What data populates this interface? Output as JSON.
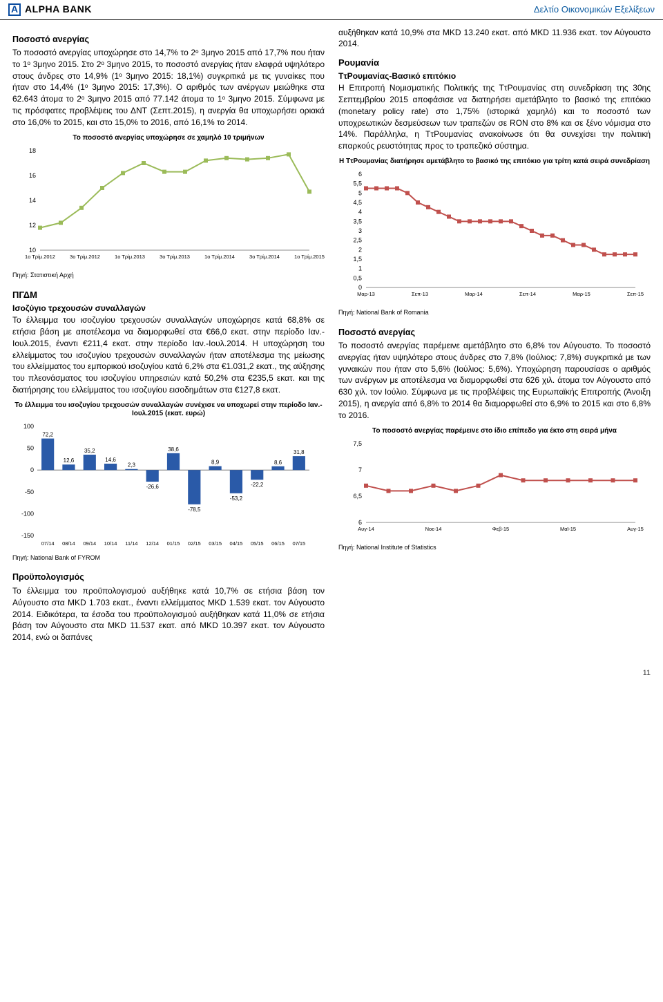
{
  "header": {
    "bank_name": "ALPHA BANK",
    "right_text": "Δελτίο Οικονομικών Εξελίξεων"
  },
  "left": {
    "sec1_title": "Ποσοστό ανεργίας",
    "sec1_body": "Το ποσοστό ανεργίας υποχώρησε στο 14,7% το 2ᵒ 3μηνο 2015 από 17,7% που ήταν το 1ᵒ 3μηνο 2015. Στο 2ᵒ 3μηνο 2015, το ποσοστό ανεργίας ήταν ελαφρά υψηλότερο στους άνδρες στο 14,9% (1ᵒ 3μηνο 2015: 18,1%) συγκριτικά με τις γυναίκες που ήταν στο 14,4% (1ᵒ 3μηνο 2015: 17,3%). Ο αριθμός των ανέργων μειώθηκε στα 62.643 άτομα το 2ᵒ 3μηνο 2015 από 77.142 άτομα το 1ᵒ 3μηνο 2015. Σύμφωνα με τις πρόσφατες προβλέψεις του ΔΝΤ (Σεπτ.2015), η ανεργία θα υποχωρήσει οριακά στο 16,0% το 2015, και στο 15,0% το 2016, από 16,1% το 2014.",
    "chart1": {
      "title": "Το ποσοστό ανεργίας υποχώρησε σε χαμηλό 10 τριμήνων",
      "source": "Πηγή: Στατιστική Αρχή",
      "ymin": 10.0,
      "ymax": 18.0,
      "ystep": 2.0,
      "x_labels": [
        "1ο Τρίμ.2012",
        "3ο Τρίμ.2012",
        "1ο Τρίμ.2013",
        "3ο Τρίμ.2013",
        "1ο Τρίμ.2014",
        "3ο Τρίμ.2014",
        "1ο Τρίμ.2015"
      ],
      "values": [
        11.8,
        12.2,
        13.4,
        15.0,
        16.2,
        17.0,
        16.3,
        16.3,
        17.2,
        17.4,
        17.3,
        17.4,
        17.7,
        14.7
      ],
      "line_color": "#9bbb59",
      "marker_color": "#9bbb59",
      "bg": "#ffffff"
    },
    "sec2_title": "ΠΓΔΜ",
    "sec2_sub": "Ισοζύγιο τρεχουσών συναλλαγών",
    "sec2_body": "Το έλλειμμα του ισοζυγίου τρεχουσών συναλλαγών υποχώρησε κατά 68,8% σε ετήσια βάση με αποτέλεσμα να διαμορφωθεί στα €66,0 εκατ. στην περίοδο Ιαν.-Ιουλ.2015, έναντι €211,4 εκατ. στην περίοδο Ιαν.-Ιουλ.2014. Η υποχώρηση του ελλείμματος του ισοζυγίου τρεχουσών συναλλαγών ήταν αποτέλεσμα της μείωσης του ελλείμματος του εμπορικού ισοζυγίου κατά 6,2% στα €1.031,2 εκατ., της αύξησης του πλεονάσματος του ισοζυγίου υπηρεσιών κατά 50,2% στα €235,5 εκατ. και της διατήρησης του ελλείμματος του ισοζυγίου εισοδημάτων στα €127,8 εκατ.",
    "chart2": {
      "title": "Το έλλειμμα του ισοζυγίου τρεχουσών συναλλαγών συνέχισε να υποχωρεί στην περίοδο Ιαν.-Ιουλ.2015 (εκατ. ευρώ)",
      "source": "Πηγή: National Bank of FYROM",
      "ymin": -150,
      "ymax": 100,
      "ystep": 50,
      "x_labels": [
        "07/14",
        "08/14",
        "09/14",
        "10/14",
        "11/14",
        "12/14",
        "01/15",
        "02/15",
        "03/15",
        "04/15",
        "05/15",
        "06/15",
        "07/15"
      ],
      "values": [
        72.2,
        12.6,
        35.2,
        14.6,
        2.3,
        -26.6,
        38.6,
        -78.5,
        8.9,
        -53.2,
        -22.2,
        8.6,
        31.8
      ],
      "bar_color": "#2a5aa8",
      "label_color": "#000",
      "bg": "#ffffff"
    },
    "sec3_title": "Προϋπολογισμός",
    "sec3_body": "Το έλλειμμα του προϋπολογισμού αυξήθηκε κατά 10,7% σε ετήσια βάση τον Αύγουστο στα MKD 1.703 εκατ., έναντι ελλείμματος MKD 1.539 εκατ. τον Αύγουστο 2014. Ειδικότερα, τα έσοδα του προϋπολογισμού αυξήθηκαν κατά 11,0% σε ετήσια βάση τον Αύγουστο στα MKD 11.537 εκατ. από MKD 10.397 εκατ. τον Αύγουστο 2014, ενώ οι δαπάνες"
  },
  "right": {
    "top_body": "αυξήθηκαν κατά 10,9% στα MKD 13.240 εκατ. από MKD 11.936 εκατ. τον Αύγουστο 2014.",
    "sec1_title": "Ρουμανία",
    "sec1_sub": "ΤτΡουμανίας-Βασικό επιτόκιο",
    "sec1_body": "Η Επιτροπή Νομισματικής Πολιτικής της ΤτΡουμανίας στη συνεδρίαση της 30ης Σεπτεμβρίου 2015 αποφάσισε να διατηρήσει αμετάβλητο το βασικό της επιτόκιο (monetary policy rate) στο 1,75% (ιστορικά χαμηλό) και το ποσοστό των υποχρεωτικών δεσμεύσεων των τραπεζών σε RON στο 8% και σε ξένο νόμισμα στο 14%. Παράλληλα, η ΤτΡουμανίας ανακοίνωσε ότι θα συνεχίσει την πολιτική επαρκούς ρευστότητας προς το τραπεζικό σύστημα.",
    "chart3": {
      "title": "Η ΤτΡουμανίας διατήρησε αμετάβλητο το βασικό της επιτόκιο για τρίτη κατά σειρά συνεδρίαση",
      "source": "Πηγή: National Bank of Romania",
      "ymin": 0.0,
      "ymax": 6.0,
      "ystep": 0.5,
      "x_labels": [
        "Μαρ-13",
        "Σεπ-13",
        "Μαρ-14",
        "Σεπ-14",
        "Μαρ-15",
        "Σεπ-15"
      ],
      "values": [
        5.25,
        5.25,
        5.25,
        5.25,
        5.0,
        4.5,
        4.25,
        4.0,
        3.75,
        3.5,
        3.5,
        3.5,
        3.5,
        3.5,
        3.5,
        3.25,
        3.0,
        2.75,
        2.75,
        2.5,
        2.25,
        2.25,
        2.0,
        1.75,
        1.75,
        1.75,
        1.75
      ],
      "line_color": "#c0504d",
      "marker_color": "#c0504d",
      "bg": "#ffffff"
    },
    "sec2_title": "Ποσοστό ανεργίας",
    "sec2_body": "Το ποσοστό ανεργίας παρέμεινε αμετάβλητο στο 6,8% τον Αύγουστο. Το ποσοστό ανεργίας ήταν υψηλότερο στους άνδρες στο 7,8% (Ιούλιος: 7,8%) συγκριτικά με των γυναικών που ήταν στο 5,6% (Ιούλιος: 5,6%). Υποχώρηση παρουσίασε ο αριθμός των ανέργων με αποτέλεσμα να διαμορφωθεί στα 626 χιλ. άτομα τον Αύγουστο από 630 χιλ. τον Ιούλιο. Σύμφωνα με τις προβλέψεις της Ευρωπαϊκής Επιτροπής (Άνοιξη 2015), η ανεργία από 6,8% το 2014 θα διαμορφωθεί στο 6,9% το 2015 και στο 6,8% το 2016.",
    "chart4": {
      "title": "Το ποσοστό ανεργίας παρέμεινε στο ίδιο επίπεδο για έκτο στη σειρά μήνα",
      "source": "Πηγή: National Institute of Statistics",
      "ymin": 6.0,
      "ymax": 7.5,
      "ystep": 0.5,
      "x_labels": [
        "Αυγ-14",
        "Νοε-14",
        "Φεβ-15",
        "Μαϊ-15",
        "Αυγ-15"
      ],
      "values": [
        6.7,
        6.6,
        6.6,
        6.7,
        6.6,
        6.7,
        6.9,
        6.8,
        6.8,
        6.8,
        6.8,
        6.8,
        6.8
      ],
      "line_color": "#c0504d",
      "marker_color": "#c0504d",
      "bg": "#ffffff"
    }
  },
  "page_number": "11"
}
